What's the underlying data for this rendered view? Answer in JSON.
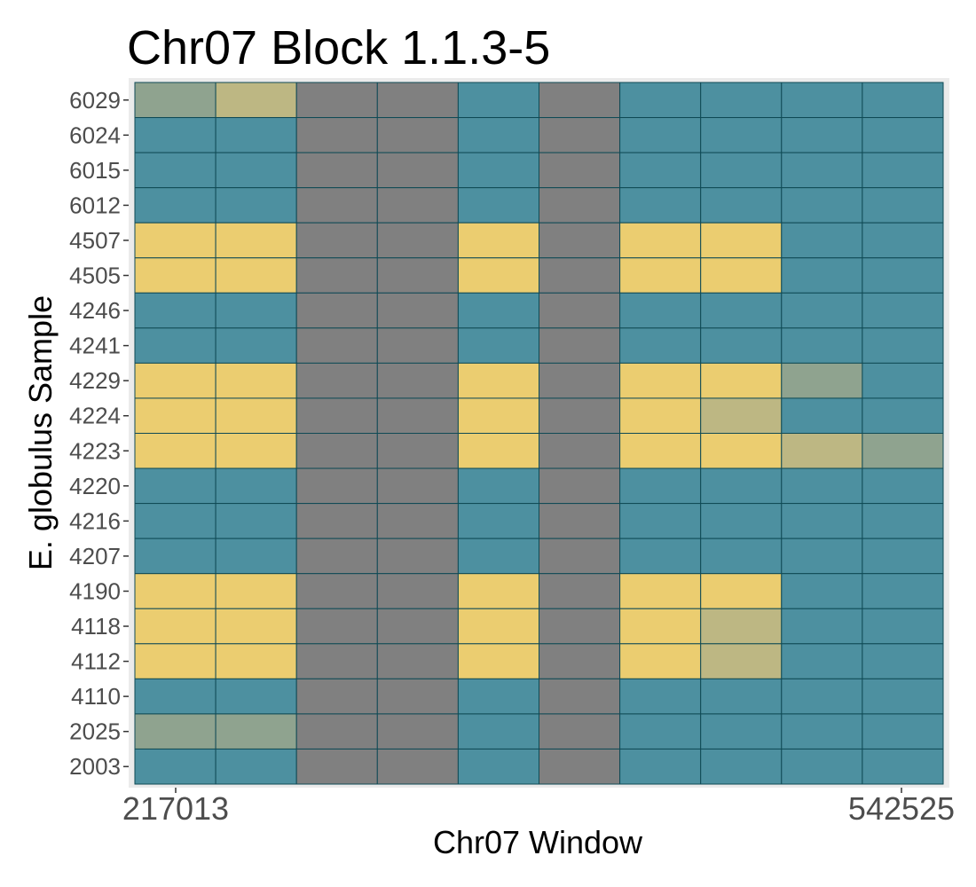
{
  "chart_data": {
    "type": "heatmap",
    "title": "Chr07 Block 1.1.3-5",
    "xlabel": "Chr07 Window",
    "ylabel": "E. globulus Sample",
    "x_tick_labels": [
      "217013",
      "542525"
    ],
    "rows": [
      "6029",
      "6024",
      "6015",
      "6012",
      "4507",
      "4505",
      "4246",
      "4241",
      "4229",
      "4224",
      "4223",
      "4220",
      "4216",
      "4207",
      "4190",
      "4118",
      "4112",
      "4110",
      "2025",
      "2003"
    ],
    "n_cols": 10,
    "states": {
      "T": {
        "color": "#4d90a0"
      },
      "Y": {
        "color": "#ebcd70"
      },
      "G": {
        "color": "#808080"
      },
      "M": {
        "color": "#bdb783"
      },
      "S": {
        "color": "#8fa38f"
      }
    },
    "grid": [
      [
        "S",
        "M",
        "G",
        "G",
        "T",
        "G",
        "T",
        "T",
        "T",
        "T"
      ],
      [
        "T",
        "T",
        "G",
        "G",
        "T",
        "G",
        "T",
        "T",
        "T",
        "T"
      ],
      [
        "T",
        "T",
        "G",
        "G",
        "T",
        "G",
        "T",
        "T",
        "T",
        "T"
      ],
      [
        "T",
        "T",
        "G",
        "G",
        "T",
        "G",
        "T",
        "T",
        "T",
        "T"
      ],
      [
        "Y",
        "Y",
        "G",
        "G",
        "Y",
        "G",
        "Y",
        "Y",
        "T",
        "T"
      ],
      [
        "Y",
        "Y",
        "G",
        "G",
        "Y",
        "G",
        "Y",
        "Y",
        "T",
        "T"
      ],
      [
        "T",
        "T",
        "G",
        "G",
        "T",
        "G",
        "T",
        "T",
        "T",
        "T"
      ],
      [
        "T",
        "T",
        "G",
        "G",
        "T",
        "G",
        "T",
        "T",
        "T",
        "T"
      ],
      [
        "Y",
        "Y",
        "G",
        "G",
        "Y",
        "G",
        "Y",
        "Y",
        "S",
        "T"
      ],
      [
        "Y",
        "Y",
        "G",
        "G",
        "Y",
        "G",
        "Y",
        "M",
        "T",
        "T"
      ],
      [
        "Y",
        "Y",
        "G",
        "G",
        "Y",
        "G",
        "Y",
        "Y",
        "M",
        "S"
      ],
      [
        "T",
        "T",
        "G",
        "G",
        "T",
        "G",
        "T",
        "T",
        "T",
        "T"
      ],
      [
        "T",
        "T",
        "G",
        "G",
        "T",
        "G",
        "T",
        "T",
        "T",
        "T"
      ],
      [
        "T",
        "T",
        "G",
        "G",
        "T",
        "G",
        "T",
        "T",
        "T",
        "T"
      ],
      [
        "Y",
        "Y",
        "G",
        "G",
        "Y",
        "G",
        "Y",
        "Y",
        "T",
        "T"
      ],
      [
        "Y",
        "Y",
        "G",
        "G",
        "Y",
        "G",
        "Y",
        "M",
        "T",
        "T"
      ],
      [
        "Y",
        "Y",
        "G",
        "G",
        "Y",
        "G",
        "Y",
        "M",
        "T",
        "T"
      ],
      [
        "T",
        "T",
        "G",
        "G",
        "T",
        "G",
        "T",
        "T",
        "T",
        "T"
      ],
      [
        "S",
        "S",
        "G",
        "G",
        "T",
        "G",
        "T",
        "T",
        "T",
        "T"
      ],
      [
        "T",
        "T",
        "G",
        "G",
        "T",
        "G",
        "T",
        "T",
        "T",
        "T"
      ]
    ],
    "grid_lines": true,
    "legend": "none"
  }
}
